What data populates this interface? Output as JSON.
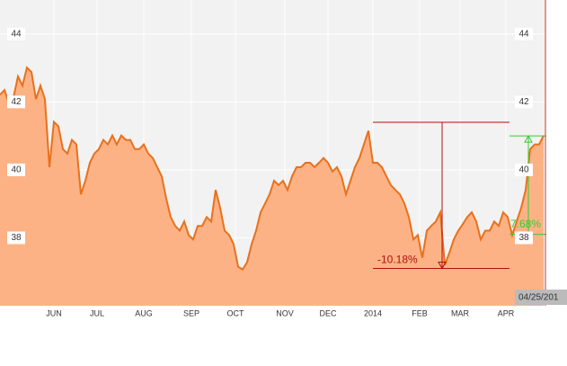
{
  "chart_data": {
    "type": "area",
    "values": [
      42.21,
      42.35,
      41.95,
      42.13,
      42.75,
      42.48,
      43.01,
      42.88,
      42.08,
      42.48,
      42.08,
      40.08,
      41.41,
      41.28,
      40.61,
      40.48,
      40.88,
      40.75,
      39.28,
      39.68,
      40.21,
      40.48,
      40.61,
      40.88,
      40.75,
      41.01,
      40.75,
      41.01,
      40.88,
      40.88,
      40.61,
      40.61,
      40.75,
      40.48,
      40.35,
      40.08,
      39.81,
      39.15,
      38.61,
      38.35,
      38.21,
      38.48,
      38.08,
      37.95,
      38.35,
      38.35,
      38.61,
      38.48,
      39.41,
      38.88,
      38.21,
      38.08,
      37.81,
      37.15,
      37.07,
      37.28,
      37.81,
      38.21,
      38.75,
      39.01,
      39.28,
      39.68,
      39.55,
      39.68,
      39.41,
      39.81,
      40.08,
      40.08,
      40.21,
      40.21,
      40.08,
      40.21,
      40.35,
      40.21,
      39.95,
      40.08,
      39.81,
      39.28,
      39.68,
      40.08,
      40.35,
      40.75,
      41.15,
      40.21,
      40.21,
      40.08,
      39.81,
      39.55,
      39.41,
      39.28,
      39.01,
      38.61,
      37.95,
      38.08,
      37.41,
      38.21,
      38.35,
      38.48,
      38.75,
      37.2,
      37.55,
      37.95,
      38.21,
      38.4,
      38.61,
      38.75,
      38.48,
      37.95,
      38.21,
      38.21,
      38.48,
      38.35,
      38.75,
      38.61,
      38.08,
      38.48,
      38.88,
      39.41,
      40.61,
      40.75,
      40.75,
      41.01
    ],
    "line_color": "#e8711c",
    "fill_color": "#fdb285",
    "xlim": [
      0,
      121.6
    ],
    "ylim": [
      36,
      45
    ],
    "yticks": [
      38,
      40,
      42,
      44
    ],
    "xticks": [
      {
        "value": 12,
        "label": "JUN"
      },
      {
        "value": 21.6,
        "label": "JUL"
      },
      {
        "value": 32,
        "label": "AUG"
      },
      {
        "value": 42.6,
        "label": "SEP"
      },
      {
        "value": 52.4,
        "label": "OCT"
      },
      {
        "value": 63.4,
        "label": "NOV"
      },
      {
        "value": 73,
        "label": "DEC"
      },
      {
        "value": 83,
        "label": "2014"
      },
      {
        "value": 93.4,
        "label": "FEB"
      },
      {
        "value": 102.4,
        "label": "MAR"
      },
      {
        "value": 112.6,
        "label": "APR"
      }
    ],
    "grid": true,
    "measures": [
      {
        "label": "-10.18%",
        "high": 41.4,
        "low": 37.1,
        "color": "#b01010"
      },
      {
        "label": "7.68%",
        "high": 41.0,
        "low": 38.1,
        "color": "#33cc33"
      }
    ],
    "date_label": "04/25/201"
  }
}
